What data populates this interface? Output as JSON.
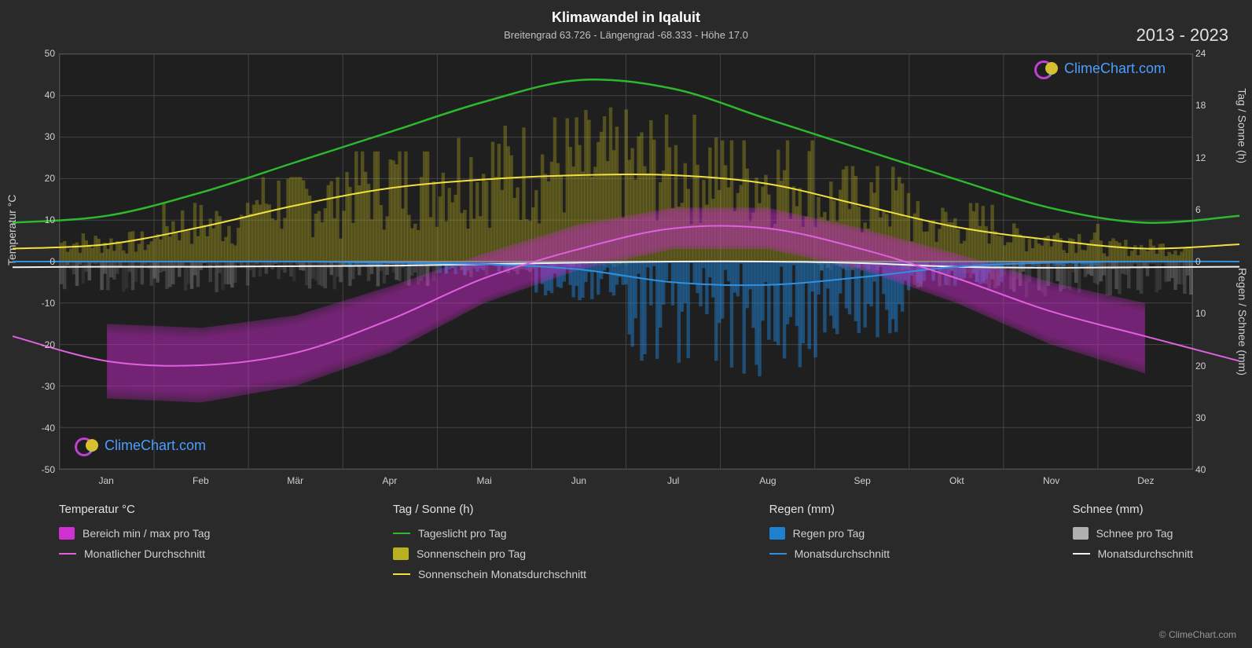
{
  "title": "Klimawandel in Iqaluit",
  "subtitle": "Breitengrad 63.726 - Längengrad -68.333 - Höhe 17.0",
  "year_range": "2013 - 2023",
  "watermark_text": "ClimeChart.com",
  "copyright": "© ClimeChart.com",
  "axes": {
    "left_label": "Temperatur °C",
    "right_top_label": "Tag / Sonne (h)",
    "right_bottom_label": "Regen / Schnee (mm)",
    "left_ticks": [
      50,
      40,
      30,
      20,
      10,
      0,
      -10,
      -20,
      -30,
      -40,
      -50
    ],
    "right_top_ticks": [
      24,
      18,
      12,
      6,
      0
    ],
    "right_bottom_ticks": [
      0,
      10,
      20,
      30,
      40
    ],
    "x_ticks": [
      "Jan",
      "Feb",
      "Mär",
      "Apr",
      "Mai",
      "Jun",
      "Jul",
      "Aug",
      "Sep",
      "Okt",
      "Nov",
      "Dez"
    ]
  },
  "chart": {
    "background_color": "#1f1f1f",
    "grid_color": "#444444",
    "left_ylim": [
      -50,
      50
    ],
    "right_top_ylim": [
      0,
      24
    ],
    "right_bottom_ylim": [
      0,
      40
    ],
    "zero_line_y": 0,
    "zero_color": "#888888"
  },
  "series": {
    "daylight": {
      "color": "#2eb82e",
      "width": 2.5,
      "unit": "hours",
      "values_monthly": [
        5.3,
        8.0,
        11.5,
        15.0,
        18.5,
        21.0,
        20.0,
        16.5,
        13.0,
        9.5,
        6.2,
        4.5
      ]
    },
    "sunshine_avg": {
      "color": "#f0e040",
      "width": 2,
      "unit": "hours",
      "values_monthly": [
        2.0,
        4.0,
        6.5,
        8.5,
        9.5,
        10.0,
        10.0,
        9.0,
        6.5,
        4.0,
        2.5,
        1.5
      ]
    },
    "temp_avg": {
      "color": "#e060e0",
      "width": 2,
      "unit": "celsius",
      "values_monthly": [
        -24,
        -25,
        -22,
        -14,
        -4,
        3,
        8,
        8,
        3,
        -4,
        -12,
        -18
      ]
    },
    "rain_avg": {
      "color": "#3090e0",
      "width": 2,
      "unit": "mm",
      "values_monthly": [
        0.0,
        0.0,
        0.0,
        0.2,
        0.5,
        1.5,
        4.0,
        4.5,
        3.0,
        1.0,
        0.2,
        0.0
      ]
    },
    "snow_avg": {
      "color": "#f0f0f0",
      "width": 2,
      "unit": "mm",
      "values_monthly": [
        1.0,
        1.0,
        0.9,
        0.8,
        0.5,
        0.2,
        0.0,
        0.0,
        0.3,
        1.0,
        1.2,
        1.1
      ]
    },
    "temp_range_band": {
      "color": "#d030d0",
      "opacity": 0.25,
      "min_monthly": [
        -33,
        -34,
        -30,
        -22,
        -10,
        -2,
        3,
        3,
        -2,
        -10,
        -20,
        -27
      ],
      "max_monthly": [
        -15,
        -16,
        -13,
        -6,
        2,
        9,
        13,
        13,
        8,
        2,
        -5,
        -10
      ]
    },
    "sunshine_daily_bars": {
      "color": "#b8b020",
      "opacity": 0.35,
      "unit": "hours"
    },
    "rain_daily_bars": {
      "color": "#2080d0",
      "opacity": 0.5,
      "unit": "mm"
    },
    "snow_daily_bars": {
      "color": "#b0b0b0",
      "opacity": 0.35,
      "unit": "mm"
    }
  },
  "legend": {
    "groups": [
      {
        "header": "Temperatur °C",
        "items": [
          {
            "type": "swatch",
            "color": "#d030d0",
            "label": "Bereich min / max pro Tag"
          },
          {
            "type": "line",
            "color": "#e060e0",
            "label": "Monatlicher Durchschnitt"
          }
        ]
      },
      {
        "header": "Tag / Sonne (h)",
        "items": [
          {
            "type": "line",
            "color": "#2eb82e",
            "label": "Tageslicht pro Tag"
          },
          {
            "type": "swatch",
            "color": "#b8b020",
            "label": "Sonnenschein pro Tag"
          },
          {
            "type": "line",
            "color": "#f0e040",
            "label": "Sonnenschein Monatsdurchschnitt"
          }
        ]
      },
      {
        "header": "Regen (mm)",
        "items": [
          {
            "type": "swatch",
            "color": "#2080d0",
            "label": "Regen pro Tag"
          },
          {
            "type": "line",
            "color": "#3090e0",
            "label": "Monatsdurchschnitt"
          }
        ]
      },
      {
        "header": "Schnee (mm)",
        "items": [
          {
            "type": "swatch",
            "color": "#b0b0b0",
            "label": "Schnee pro Tag"
          },
          {
            "type": "line",
            "color": "#f0f0f0",
            "label": "Monatsdurchschnitt"
          }
        ]
      }
    ]
  }
}
